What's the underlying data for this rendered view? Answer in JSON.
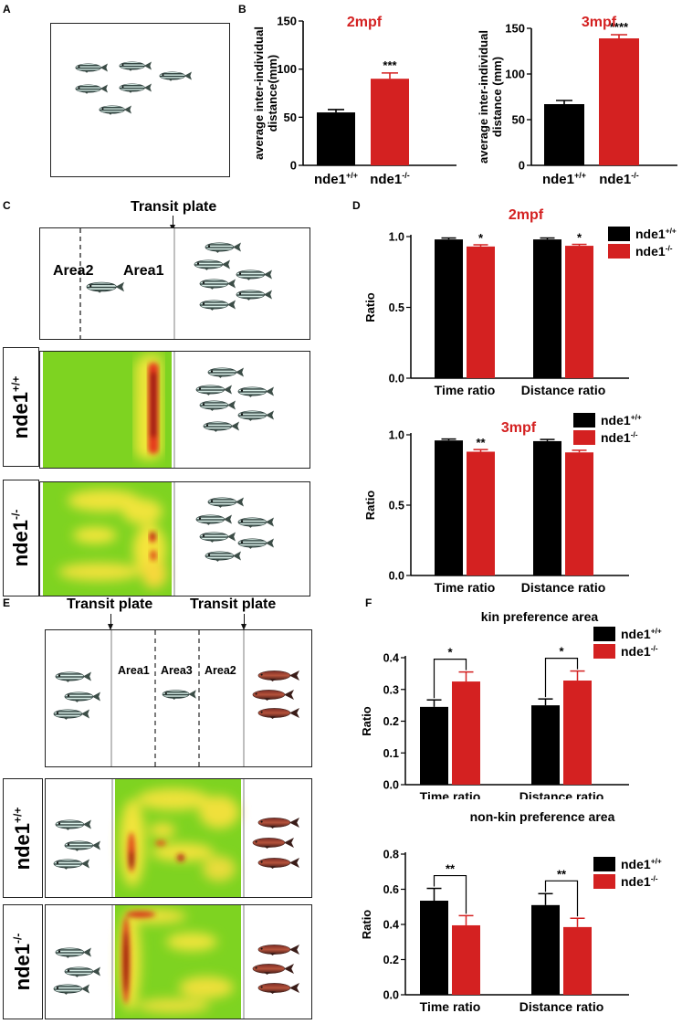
{
  "panels": {
    "A": "A",
    "B": "B",
    "C": "C",
    "D": "D",
    "E": "E",
    "F": "F"
  },
  "colors": {
    "black": "#000000",
    "red": "#d42121",
    "heat_bg": "#7ed321"
  },
  "fish_icons": {
    "zebrafish": "striped-zebrafish-icon",
    "kin": "red-fish-icon"
  },
  "panel_C": {
    "transit": "Transit plate",
    "area2": "Area2",
    "area1": "Area1",
    "row_wt": {
      "base": "nde1",
      "sup": "+/+"
    },
    "row_mut": {
      "base": "nde1",
      "sup": "-/-"
    }
  },
  "panel_E": {
    "transit_left": "Transit plate",
    "transit_right": "Transit plate",
    "area1": "Area1",
    "area3": "Area3",
    "area2": "Area2",
    "row_wt": {
      "base": "nde1",
      "sup": "+/+"
    },
    "row_mut": {
      "base": "nde1",
      "sup": "-/-"
    }
  },
  "chart_data": [
    {
      "id": "B1",
      "type": "bar",
      "title": "2mpf",
      "ylabel": "average inter-individual distance(mm)",
      "categories": [
        {
          "base": "nde1",
          "sup": "+/+"
        },
        {
          "base": "nde1",
          "sup": "-/-"
        }
      ],
      "values": [
        55,
        90
      ],
      "errors": [
        3,
        6
      ],
      "ylim": [
        0,
        150
      ],
      "ticks": [
        0,
        50,
        100,
        150
      ],
      "annotations": [
        {
          "bar": 1,
          "text": "***"
        }
      ],
      "colors": [
        "#000000",
        "#d42121"
      ]
    },
    {
      "id": "B2",
      "type": "bar",
      "title": "3mpf",
      "ylabel": "average inter-individual distance (mm)",
      "categories": [
        {
          "base": "nde1",
          "sup": "+/+"
        },
        {
          "base": "nde1",
          "sup": "-/-"
        }
      ],
      "values": [
        67,
        139
      ],
      "errors": [
        4,
        4
      ],
      "ylim": [
        0,
        150
      ],
      "ticks": [
        0,
        50,
        100,
        150
      ],
      "annotations": [
        {
          "bar": 1,
          "text": "****"
        }
      ],
      "colors": [
        "#000000",
        "#d42121"
      ]
    },
    {
      "id": "D1",
      "type": "bar",
      "title": "2mpf",
      "ylabel": "Ratio",
      "categories": [
        "Time ratio",
        "Distance ratio"
      ],
      "series": [
        {
          "name": {
            "base": "nde1",
            "sup": "+/+"
          },
          "values": [
            0.98,
            0.98
          ],
          "errors": [
            0.01,
            0.01
          ],
          "color": "#000000"
        },
        {
          "name": {
            "base": "nde1",
            "sup": "-/-"
          },
          "values": [
            0.93,
            0.935
          ],
          "errors": [
            0.012,
            0.01
          ],
          "color": "#d42121"
        }
      ],
      "ylim": [
        0,
        1.0
      ],
      "ticks": [
        "0.0",
        "0.5",
        "1.0"
      ],
      "annotations": [
        {
          "group": 0,
          "series": 1,
          "text": "*"
        },
        {
          "group": 1,
          "series": 1,
          "text": "*"
        }
      ]
    },
    {
      "id": "D2",
      "type": "bar",
      "title": "3mpf",
      "ylabel": "Ratio",
      "categories": [
        "Time ratio",
        "Distance ratio"
      ],
      "series": [
        {
          "name": {
            "base": "nde1",
            "sup": "+/+"
          },
          "values": [
            0.96,
            0.955
          ],
          "errors": [
            0.01,
            0.012
          ],
          "color": "#000000"
        },
        {
          "name": {
            "base": "nde1",
            "sup": "-/-"
          },
          "values": [
            0.88,
            0.875
          ],
          "errors": [
            0.015,
            0.015
          ],
          "color": "#d42121"
        }
      ],
      "ylim": [
        0,
        1.0
      ],
      "ticks": [
        "0.0",
        "0.5",
        "1.0"
      ],
      "annotations": [
        {
          "group": 0,
          "series": 1,
          "text": "**"
        },
        {
          "group": 1,
          "series": 1,
          "text": "**"
        }
      ]
    },
    {
      "id": "F1",
      "type": "bar",
      "title": "kin preference area",
      "ylabel": "Ratio",
      "categories": [
        "Time ratio",
        "Distance ratio"
      ],
      "series": [
        {
          "name": {
            "base": "nde1",
            "sup": "+/+"
          },
          "values": [
            0.245,
            0.25
          ],
          "errors": [
            0.022,
            0.02
          ],
          "color": "#000000"
        },
        {
          "name": {
            "base": "nde1",
            "sup": "-/-"
          },
          "values": [
            0.325,
            0.328
          ],
          "errors": [
            0.03,
            0.03
          ],
          "color": "#d42121"
        }
      ],
      "ylim": [
        0,
        0.4
      ],
      "ticks": [
        "0.0",
        "0.1",
        "0.2",
        "0.3",
        "0.4"
      ],
      "brackets": [
        {
          "group": 0,
          "text": "*"
        },
        {
          "group": 1,
          "text": "*"
        }
      ]
    },
    {
      "id": "F2",
      "type": "bar",
      "title": "non-kin preference area",
      "ylabel": "Ratio",
      "categories": [
        "Time ratio",
        "Distance ratio"
      ],
      "series": [
        {
          "name": {
            "base": "nde1",
            "sup": "+/+"
          },
          "values": [
            0.535,
            0.51
          ],
          "errors": [
            0.07,
            0.065
          ],
          "color": "#000000"
        },
        {
          "name": {
            "base": "nde1",
            "sup": "-/-"
          },
          "values": [
            0.395,
            0.385
          ],
          "errors": [
            0.055,
            0.05
          ],
          "color": "#d42121"
        }
      ],
      "ylim": [
        0,
        0.8
      ],
      "ticks": [
        "0.0",
        "0.2",
        "0.4",
        "0.6",
        "0.8"
      ],
      "brackets": [
        {
          "group": 0,
          "text": "**"
        },
        {
          "group": 1,
          "text": "**"
        }
      ]
    }
  ]
}
